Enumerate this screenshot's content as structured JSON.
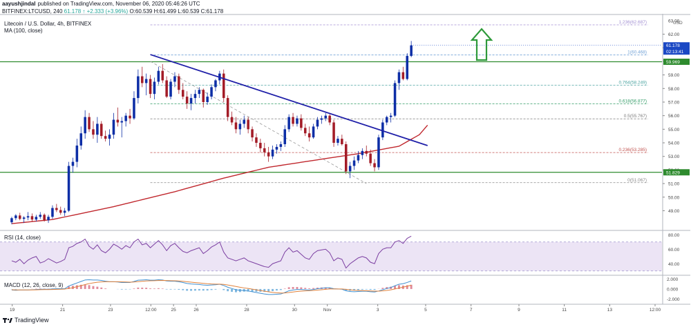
{
  "header": {
    "author": "aayushjindal",
    "published_text": "published on TradingView.com, November 06, 2020 05:46:26 UTC",
    "symbol_line": "BITFINEX:LTCUSD, 240",
    "last": "61.178",
    "change": "↑ +2.333 (+3.96%)",
    "open": "O:60.539",
    "high": "H:61.499",
    "low": "L:60.539",
    "close": "C:61.178"
  },
  "legend": {
    "title": "Litecoin / U.S. Dollar, 4h, BITFINEX",
    "ma": "MA (100, close)",
    "rsi": "RSI (14, close)",
    "macd": "MACD (12, 26, close, 9)"
  },
  "footer": {
    "brand": "TradingView"
  },
  "colors": {
    "up": "#0d2ea6",
    "down": "#a31c27",
    "ma": "#c0272d",
    "trendline": "#1f1fa8",
    "support": "#2e8b2e",
    "arrow": "#2e9a3a",
    "fib": "#9c90c9",
    "rsi_line": "#7b3ea1",
    "rsi_band": "#ece4f5",
    "macd_line": "#3f8fd0",
    "signal_line": "#e0813a"
  },
  "chart_data": {
    "type": "candlestick",
    "title": "Litecoin / U.S. Dollar, 4h, BITFINEX",
    "ylabel": "USD",
    "ylim": [
      47.6,
      63.4
    ],
    "y_ticks": [
      49,
      50,
      51,
      52,
      53,
      54,
      55,
      56,
      57,
      58,
      59,
      60,
      61,
      62,
      63
    ],
    "x_ticks": [
      "19",
      "21",
      "23",
      "12:00",
      "25",
      "26",
      "28",
      "30",
      "Nov",
      "3",
      "5",
      "7",
      "9",
      "11",
      "13",
      "12:00"
    ],
    "fib_levels": [
      {
        "label": "1.236(62.687)",
        "value": 62.687
      },
      {
        "label": "1(60.468)",
        "value": 60.468
      },
      {
        "label": "0.764(58.249)",
        "value": 58.249
      },
      {
        "label": "0.618(56.877)",
        "value": 56.877
      },
      {
        "label": "0.5(55.767)",
        "value": 55.767
      },
      {
        "label": "0.236(53.285)",
        "value": 53.285
      },
      {
        "label": "0(51.067)",
        "value": 51.067
      }
    ],
    "price_tags": [
      {
        "label": "61.178",
        "sub": "02:13:41",
        "value": 61.178,
        "color": "#1a48c4"
      },
      {
        "label": "59.969",
        "value": 59.969,
        "color": "#2e8b2e"
      },
      {
        "label": "51.829",
        "value": 51.829,
        "color": "#2e8b2e"
      }
    ],
    "support_levels": [
      59.969,
      51.829
    ],
    "ohlc": [
      [
        48.15,
        48.55,
        48.0,
        48.45
      ],
      [
        48.45,
        48.75,
        48.3,
        48.65
      ],
      [
        48.65,
        48.85,
        48.3,
        48.4
      ],
      [
        48.4,
        48.6,
        48.1,
        48.5
      ],
      [
        48.5,
        48.9,
        48.3,
        48.6
      ],
      [
        48.6,
        48.8,
        48.2,
        48.35
      ],
      [
        48.35,
        48.7,
        48.2,
        48.55
      ],
      [
        48.55,
        48.9,
        48.4,
        48.7
      ],
      [
        48.7,
        48.8,
        48.2,
        48.3
      ],
      [
        48.3,
        48.7,
        48.1,
        48.55
      ],
      [
        48.55,
        49.4,
        48.4,
        49.2
      ],
      [
        49.2,
        49.5,
        48.9,
        49.05
      ],
      [
        49.05,
        49.3,
        48.7,
        48.85
      ],
      [
        48.85,
        49.2,
        48.6,
        49.0
      ],
      [
        49.0,
        52.6,
        48.9,
        52.3
      ],
      [
        52.3,
        52.9,
        51.8,
        52.6
      ],
      [
        52.6,
        54.3,
        52.2,
        53.8
      ],
      [
        53.8,
        55.2,
        53.5,
        54.7
      ],
      [
        54.7,
        56.4,
        54.3,
        55.9
      ],
      [
        55.9,
        56.2,
        54.8,
        55.0
      ],
      [
        55.0,
        55.6,
        54.3,
        54.6
      ],
      [
        54.6,
        55.9,
        54.0,
        55.4
      ],
      [
        55.4,
        55.6,
        54.3,
        54.5
      ],
      [
        54.5,
        54.9,
        54.1,
        54.3
      ],
      [
        54.3,
        55.0,
        53.8,
        54.6
      ],
      [
        54.6,
        56.2,
        54.3,
        55.7
      ],
      [
        55.7,
        56.6,
        55.2,
        55.5
      ],
      [
        55.5,
        55.9,
        54.4,
        55.6
      ],
      [
        55.6,
        56.2,
        55.2,
        56.0
      ],
      [
        56.0,
        56.5,
        55.4,
        55.8
      ],
      [
        55.8,
        57.8,
        55.7,
        57.3
      ],
      [
        57.3,
        59.4,
        56.9,
        58.9
      ],
      [
        58.9,
        59.6,
        58.1,
        58.4
      ],
      [
        58.4,
        59.1,
        57.5,
        58.7
      ],
      [
        58.7,
        59.0,
        57.3,
        57.6
      ],
      [
        57.6,
        58.8,
        57.2,
        58.5
      ],
      [
        58.5,
        59.6,
        58.3,
        59.3
      ],
      [
        59.3,
        59.8,
        58.4,
        58.6
      ],
      [
        58.6,
        58.9,
        57.3,
        57.4
      ],
      [
        57.4,
        58.7,
        57.2,
        58.5
      ],
      [
        58.5,
        59.2,
        58.1,
        58.9
      ],
      [
        58.9,
        59.1,
        57.6,
        57.9
      ],
      [
        57.9,
        58.4,
        57.2,
        57.4
      ],
      [
        57.4,
        57.8,
        56.5,
        56.9
      ],
      [
        56.9,
        57.6,
        56.4,
        57.3
      ],
      [
        57.3,
        57.9,
        56.9,
        57.6
      ],
      [
        57.6,
        58.1,
        57.3,
        57.9
      ],
      [
        57.9,
        58.0,
        56.6,
        57.0
      ],
      [
        57.0,
        57.7,
        56.8,
        57.4
      ],
      [
        57.4,
        58.3,
        57.2,
        58.1
      ],
      [
        58.1,
        58.7,
        57.8,
        58.6
      ],
      [
        58.6,
        59.3,
        58.3,
        59.1
      ],
      [
        59.1,
        59.4,
        57.0,
        57.3
      ],
      [
        57.3,
        57.5,
        55.6,
        55.9
      ],
      [
        55.9,
        56.3,
        55.3,
        55.5
      ],
      [
        55.5,
        55.9,
        54.7,
        55.0
      ],
      [
        55.0,
        55.7,
        54.6,
        55.4
      ],
      [
        55.4,
        56.0,
        55.1,
        55.7
      ],
      [
        55.7,
        55.9,
        54.7,
        55.0
      ],
      [
        55.0,
        55.2,
        54.1,
        54.4
      ],
      [
        54.4,
        54.7,
        53.7,
        54.0
      ],
      [
        54.0,
        54.3,
        53.3,
        53.6
      ],
      [
        53.6,
        54.0,
        53.0,
        53.3
      ],
      [
        53.3,
        53.7,
        52.6,
        53.0
      ],
      [
        53.0,
        53.8,
        52.8,
        53.5
      ],
      [
        53.5,
        53.9,
        53.2,
        53.7
      ],
      [
        53.7,
        54.1,
        53.4,
        53.9
      ],
      [
        53.9,
        55.3,
        53.7,
        55.0
      ],
      [
        55.0,
        56.1,
        54.8,
        55.9
      ],
      [
        55.9,
        56.2,
        55.2,
        55.4
      ],
      [
        55.4,
        56.0,
        55.2,
        55.8
      ],
      [
        55.8,
        56.1,
        54.9,
        55.1
      ],
      [
        55.1,
        55.4,
        54.5,
        54.7
      ],
      [
        54.7,
        55.2,
        54.1,
        54.4
      ],
      [
        54.4,
        55.4,
        54.3,
        55.2
      ],
      [
        55.2,
        55.9,
        55.0,
        55.7
      ],
      [
        55.7,
        56.0,
        55.4,
        55.8
      ],
      [
        55.8,
        56.2,
        55.6,
        56.0
      ],
      [
        56.0,
        56.1,
        55.3,
        55.5
      ],
      [
        55.5,
        55.7,
        53.7,
        54.0
      ],
      [
        54.0,
        54.5,
        53.8,
        54.3
      ],
      [
        54.3,
        54.6,
        53.8,
        53.9
      ],
      [
        53.9,
        54.1,
        51.7,
        51.9
      ],
      [
        51.9,
        52.6,
        51.4,
        52.3
      ],
      [
        52.3,
        53.0,
        52.0,
        52.7
      ],
      [
        52.7,
        53.4,
        52.5,
        53.1
      ],
      [
        53.1,
        53.6,
        52.8,
        53.4
      ],
      [
        53.4,
        53.8,
        53.0,
        53.2
      ],
      [
        53.2,
        53.5,
        52.3,
        52.5
      ],
      [
        52.5,
        52.8,
        51.9,
        52.2
      ],
      [
        52.2,
        54.6,
        52.0,
        54.4
      ],
      [
        54.4,
        55.7,
        54.2,
        55.5
      ],
      [
        55.5,
        56.0,
        55.3,
        55.9
      ],
      [
        55.9,
        56.2,
        55.5,
        56.0
      ],
      [
        56.0,
        58.6,
        55.9,
        58.4
      ],
      [
        58.4,
        59.4,
        57.9,
        59.2
      ],
      [
        59.2,
        59.6,
        58.6,
        58.7
      ],
      [
        58.7,
        60.6,
        58.6,
        60.4
      ],
      [
        60.4,
        61.5,
        60.3,
        61.178
      ]
    ],
    "ma_100": [
      [
        0,
        48.05
      ],
      [
        10,
        48.35
      ],
      [
        25,
        49.3
      ],
      [
        40,
        50.4
      ],
      [
        52,
        51.4
      ],
      [
        63,
        52.2
      ],
      [
        75,
        52.75
      ],
      [
        85,
        53.2
      ],
      [
        95,
        53.75
      ],
      [
        100,
        54.6
      ],
      [
        102,
        55.3
      ]
    ],
    "trendline": [
      [
        34,
        60.5
      ],
      [
        102,
        53.8
      ]
    ],
    "dashed_line": [
      [
        34,
        60.0
      ],
      [
        87,
        51.0
      ]
    ],
    "rsi": {
      "ylim": [
        25,
        85
      ],
      "ticks": [
        40,
        60,
        80
      ],
      "band": [
        30,
        70
      ],
      "values": [
        44,
        42,
        46,
        40,
        45,
        48,
        50,
        41,
        43,
        47,
        44,
        41,
        43,
        46,
        62,
        64,
        68,
        70,
        74,
        64,
        60,
        66,
        58,
        55,
        60,
        67,
        64,
        60,
        65,
        62,
        70,
        74,
        66,
        68,
        62,
        67,
        72,
        66,
        58,
        65,
        68,
        62,
        57,
        55,
        58,
        60,
        62,
        54,
        58,
        63,
        66,
        70,
        56,
        48,
        46,
        44,
        46,
        48,
        44,
        42,
        40,
        38,
        36,
        35,
        40,
        42,
        44,
        56,
        62,
        56,
        58,
        53,
        48,
        46,
        54,
        58,
        59,
        60,
        55,
        44,
        48,
        46,
        34,
        40,
        44,
        48,
        50,
        48,
        42,
        40,
        54,
        60,
        62,
        62,
        70,
        72,
        68,
        75,
        78
      ]
    },
    "macd": {
      "ylim": [
        -2.9,
        2.6
      ],
      "ticks": [
        -2.0,
        0.0,
        2.0
      ],
      "macd": [
        -0.2,
        -0.25,
        -0.2,
        -0.2,
        -0.2,
        -0.15,
        -0.1,
        -0.05,
        -0.05,
        -0.05,
        0.0,
        0.05,
        0.05,
        0.05,
        0.6,
        0.9,
        1.2,
        1.5,
        1.8,
        1.85,
        1.8,
        1.8,
        1.7,
        1.55,
        1.45,
        1.45,
        1.4,
        1.3,
        1.3,
        1.3,
        1.5,
        1.75,
        1.8,
        1.85,
        1.75,
        1.75,
        1.85,
        1.8,
        1.6,
        1.55,
        1.55,
        1.45,
        1.3,
        1.1,
        1.0,
        0.95,
        0.9,
        0.8,
        0.75,
        0.8,
        0.85,
        0.95,
        0.7,
        0.35,
        0.1,
        -0.15,
        -0.25,
        -0.3,
        -0.4,
        -0.55,
        -0.7,
        -0.85,
        -1.0,
        -1.1,
        -1.1,
        -1.05,
        -1.0,
        -0.7,
        -0.35,
        -0.2,
        -0.1,
        -0.1,
        -0.15,
        -0.2,
        -0.1,
        0.05,
        0.15,
        0.25,
        0.25,
        0.05,
        0.0,
        -0.05,
        -0.35,
        -0.5,
        -0.55,
        -0.5,
        -0.45,
        -0.45,
        -0.55,
        -0.6,
        -0.4,
        -0.15,
        0.1,
        0.3,
        0.65,
        0.95,
        1.05,
        1.3,
        1.6
      ],
      "signal": [
        -0.15,
        -0.18,
        -0.19,
        -0.19,
        -0.19,
        -0.18,
        -0.16,
        -0.14,
        -0.12,
        -0.11,
        -0.09,
        -0.06,
        -0.04,
        -0.02,
        0.1,
        0.26,
        0.45,
        0.66,
        0.89,
        1.08,
        1.22,
        1.34,
        1.41,
        1.44,
        1.45,
        1.45,
        1.44,
        1.41,
        1.39,
        1.37,
        1.4,
        1.47,
        1.53,
        1.6,
        1.63,
        1.65,
        1.69,
        1.71,
        1.69,
        1.66,
        1.64,
        1.6,
        1.54,
        1.45,
        1.36,
        1.28,
        1.2,
        1.12,
        1.05,
        1.0,
        0.97,
        0.97,
        0.92,
        0.8,
        0.66,
        0.5,
        0.35,
        0.22,
        0.1,
        -0.03,
        -0.16,
        -0.3,
        -0.44,
        -0.57,
        -0.68,
        -0.75,
        -0.8,
        -0.78,
        -0.7,
        -0.6,
        -0.5,
        -0.42,
        -0.37,
        -0.34,
        -0.29,
        -0.22,
        -0.15,
        -0.07,
        0.0,
        0.01,
        0.01,
        0.0,
        -0.07,
        -0.16,
        -0.24,
        -0.29,
        -0.32,
        -0.35,
        -0.39,
        -0.43,
        -0.43,
        -0.37,
        -0.28,
        -0.16,
        0.0,
        0.19,
        0.36,
        0.55,
        0.76
      ]
    }
  }
}
